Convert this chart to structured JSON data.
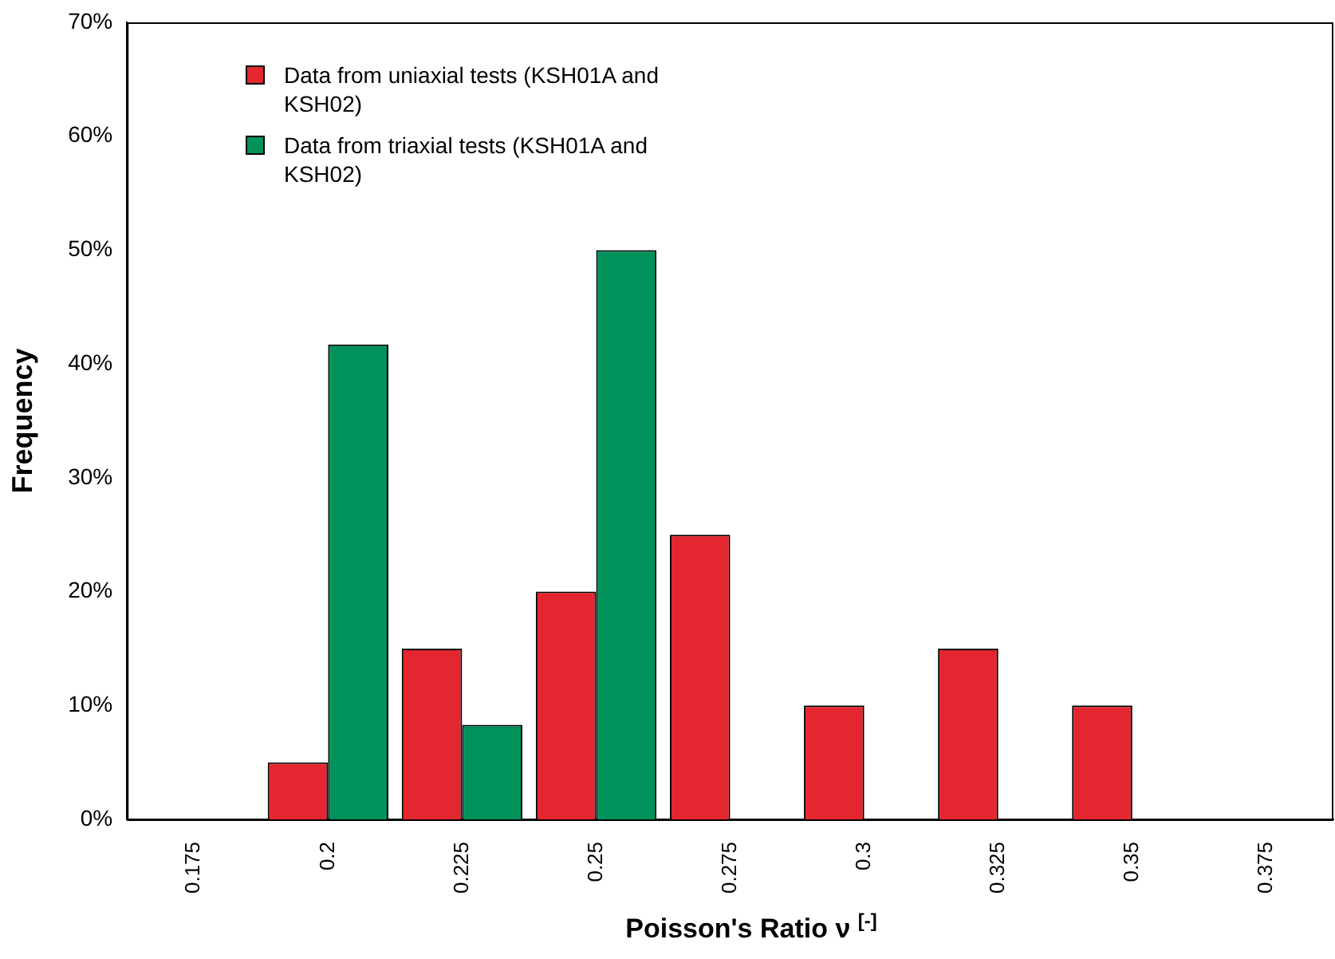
{
  "chart_data": {
    "type": "bar",
    "xlabel": "Poisson's Ratio ν $^{[-]}$",
    "ylabel": "Frequency",
    "categories": [
      "0.175",
      "0.2",
      "0.225",
      "0.25",
      "0.275",
      "0.3",
      "0.325",
      "0.35",
      "0.375"
    ],
    "series": [
      {
        "name": "Data from uniaxial tests (KSH01A and KSH02)",
        "color": "#e3262f",
        "values": [
          0,
          5,
          15,
          20,
          25,
          10,
          15,
          10,
          0
        ]
      },
      {
        "name": "Data from triaxial tests (KSH01A and KSH02)",
        "color": "#00925a",
        "values": [
          0,
          41.7,
          8.3,
          50,
          0,
          0,
          0,
          0,
          0
        ]
      }
    ],
    "ylim": [
      0,
      70
    ],
    "yticks": [
      {
        "value": 0,
        "label": "0%"
      },
      {
        "value": 10,
        "label": "10%"
      },
      {
        "value": 20,
        "label": "20%"
      },
      {
        "value": 30,
        "label": "30%"
      },
      {
        "value": 40,
        "label": "40%"
      },
      {
        "value": 50,
        "label": "50%"
      },
      {
        "value": 60,
        "label": "60%"
      },
      {
        "value": 70,
        "label": "70%"
      }
    ],
    "grid": false,
    "legend": "top left"
  }
}
